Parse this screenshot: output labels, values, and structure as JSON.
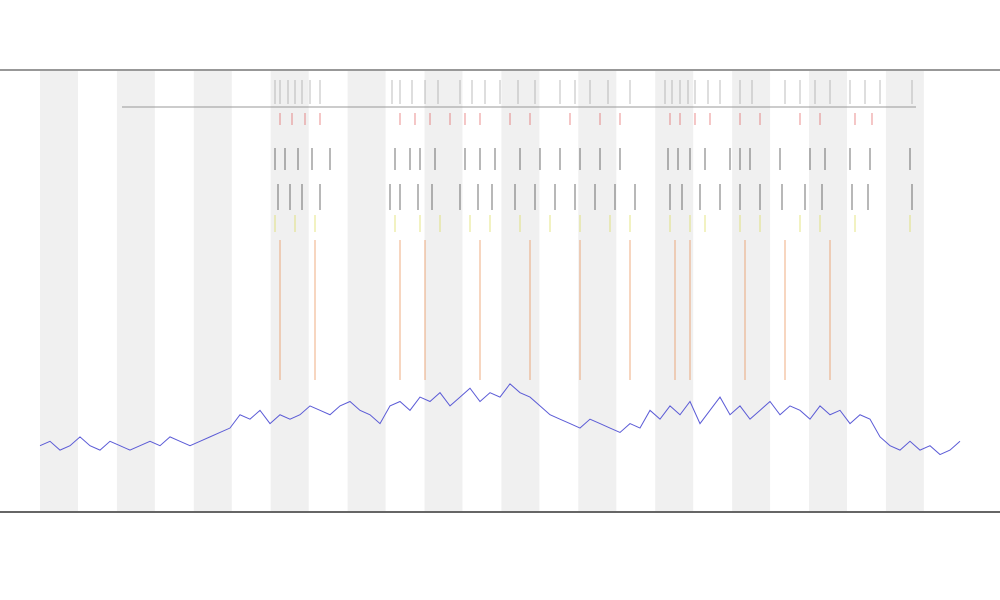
{
  "chart_data": {
    "type": "line",
    "xlim": [
      0,
      920
    ],
    "ylim": [
      0,
      100
    ],
    "x": [
      0,
      10,
      20,
      30,
      40,
      50,
      60,
      70,
      80,
      90,
      100,
      110,
      120,
      130,
      140,
      150,
      160,
      170,
      180,
      190,
      200,
      210,
      220,
      230,
      240,
      250,
      260,
      270,
      280,
      290,
      300,
      310,
      320,
      330,
      340,
      350,
      360,
      370,
      380,
      390,
      400,
      410,
      420,
      430,
      440,
      450,
      460,
      470,
      480,
      490,
      500,
      510,
      520,
      530,
      540,
      550,
      560,
      570,
      580,
      590,
      600,
      610,
      620,
      630,
      640,
      650,
      660,
      670,
      680,
      690,
      700,
      710,
      720,
      730,
      740,
      750,
      760,
      770,
      780,
      790,
      800,
      810,
      820,
      830,
      840,
      850,
      860,
      870,
      880,
      890,
      900,
      910,
      920
    ],
    "series": [
      {
        "color": "#5b5bd6",
        "values": [
          15,
          16,
          14,
          15,
          17,
          15,
          14,
          16,
          15,
          14,
          15,
          16,
          15,
          17,
          16,
          15,
          16,
          17,
          18,
          19,
          22,
          21,
          23,
          20,
          22,
          21,
          22,
          24,
          23,
          22,
          24,
          25,
          23,
          22,
          20,
          24,
          25,
          23,
          26,
          25,
          27,
          24,
          26,
          28,
          25,
          27,
          26,
          29,
          27,
          26,
          24,
          22,
          21,
          20,
          19,
          21,
          20,
          19,
          18,
          20,
          19,
          23,
          21,
          24,
          22,
          25,
          20,
          23,
          26,
          22,
          24,
          21,
          23,
          25,
          22,
          24,
          23,
          21,
          24,
          22,
          23,
          20,
          22,
          21,
          17,
          15,
          14,
          16,
          14,
          15,
          13,
          14,
          16
        ]
      }
    ],
    "tracks": [
      {
        "color": "#999999",
        "x": [
          235,
          240,
          248,
          255,
          262,
          270,
          280,
          352,
          360,
          372,
          385,
          398,
          420,
          432,
          445,
          460,
          478,
          495,
          520,
          535,
          550,
          568,
          590,
          625,
          632,
          640,
          648,
          655,
          668,
          680,
          700,
          712,
          745,
          760,
          775,
          790,
          810,
          825,
          840,
          872
        ]
      },
      {
        "color": "#e05050",
        "x": [
          240,
          252,
          265,
          280,
          360,
          375,
          390,
          410,
          425,
          440,
          470,
          490,
          530,
          560,
          580,
          630,
          640,
          655,
          670,
          700,
          720,
          760,
          780,
          815,
          832
        ]
      },
      {
        "color": "#222222",
        "x": [
          235,
          245,
          258,
          272,
          290,
          355,
          370,
          380,
          395,
          425,
          440,
          455,
          480,
          500,
          520,
          540,
          560,
          580,
          628,
          638,
          650,
          665,
          690,
          700,
          710,
          740,
          770,
          785,
          810,
          830,
          870
        ]
      },
      {
        "color": "#222222",
        "x": [
          238,
          250,
          262,
          280,
          350,
          360,
          378,
          392,
          420,
          438,
          452,
          475,
          495,
          515,
          535,
          555,
          575,
          595,
          630,
          642,
          660,
          680,
          700,
          720,
          742,
          765,
          782,
          812,
          828,
          872
        ]
      },
      {
        "color": "#d8d840",
        "x": [
          235,
          255,
          275,
          355,
          380,
          400,
          430,
          450,
          480,
          510,
          540,
          570,
          590,
          630,
          650,
          665,
          700,
          720,
          760,
          780,
          815,
          870
        ]
      },
      {
        "color": "#e8803a",
        "x": [
          240,
          275,
          360,
          385,
          440,
          490,
          540,
          590,
          635,
          650,
          705,
          745,
          790
        ]
      }
    ]
  }
}
